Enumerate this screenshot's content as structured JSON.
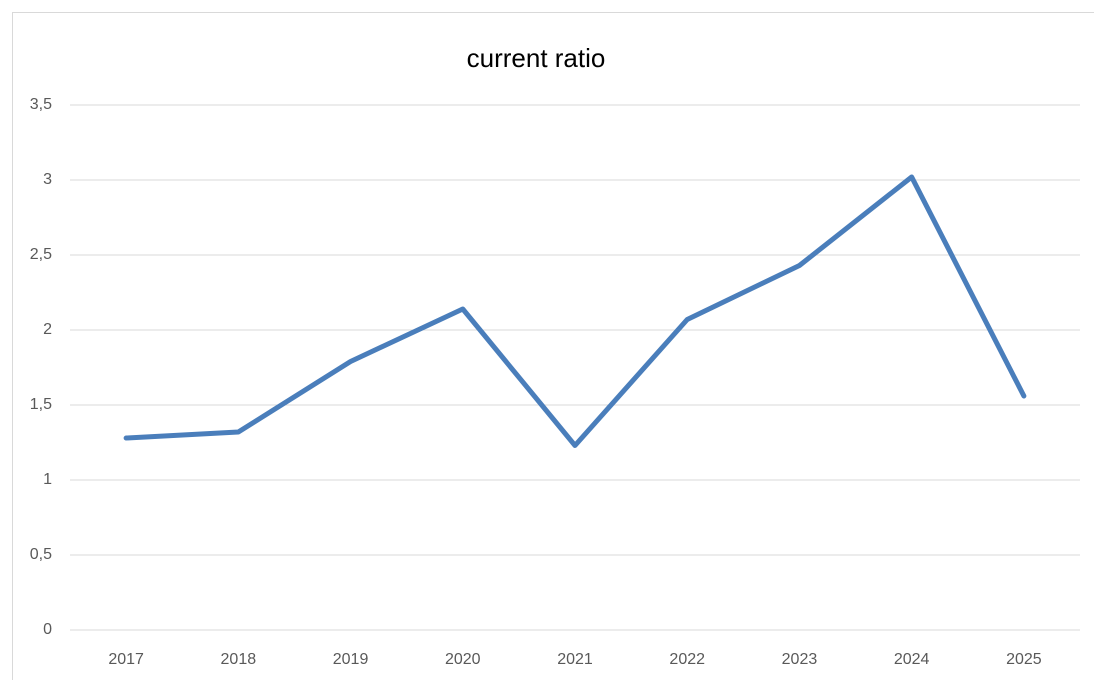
{
  "chart_data": {
    "type": "line",
    "title": "current ratio",
    "categories": [
      "2017",
      "2018",
      "2019",
      "2020",
      "2021",
      "2022",
      "2023",
      "2024",
      "2025"
    ],
    "series": [
      {
        "name": "current ratio",
        "color": "#4a7ebb",
        "values": [
          1.28,
          1.32,
          1.79,
          2.14,
          1.23,
          2.07,
          2.43,
          3.02,
          1.56
        ]
      }
    ],
    "ylim": [
      0,
      3.5
    ],
    "yticks": [
      0,
      {
        "value": 0.5,
        "label": "0,5"
      },
      1,
      {
        "value": 1.5,
        "label": "1,5"
      },
      2,
      {
        "value": 2.5,
        "label": "2,5"
      },
      3,
      {
        "value": 3.5,
        "label": "3,5"
      }
    ],
    "grid": true
  }
}
